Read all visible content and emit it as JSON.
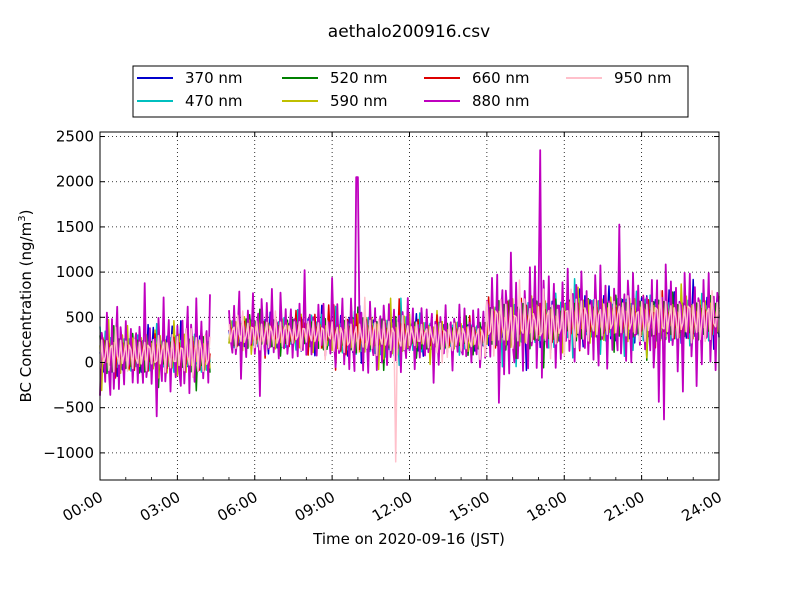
{
  "chart_data": {
    "type": "line",
    "title": "aethalo200916.csv",
    "xlabel": "Time on 2020-09-16 (JST)",
    "ylabel": "BC Concentration (ng/m³)",
    "ylabel_base": "BC Concentration (ng/m",
    "ylabel_sup": "3",
    "ylabel_end": ")",
    "x_unit": "hours since 00:00 JST",
    "xlim": [
      0,
      24
    ],
    "ylim": [
      -1300,
      2550
    ],
    "x_ticks": [
      0,
      3,
      6,
      9,
      12,
      15,
      18,
      21,
      24
    ],
    "x_tick_labels": [
      "00:00",
      "03:00",
      "06:00",
      "09:00",
      "12:00",
      "15:00",
      "18:00",
      "21:00",
      "24:00"
    ],
    "y_ticks": [
      -1000,
      -500,
      0,
      500,
      1000,
      1500,
      2000,
      2500
    ],
    "y_tick_labels": [
      "−1000",
      "−500",
      "0",
      "500",
      "1000",
      "1500",
      "2000",
      "2500"
    ],
    "grid": true,
    "legend_position": "top-center",
    "series": [
      {
        "name": "370 nm",
        "color": "#0000cc"
      },
      {
        "name": "470 nm",
        "color": "#00bfbf"
      },
      {
        "name": "520 nm",
        "color": "#008000"
      },
      {
        "name": "590 nm",
        "color": "#bfbf00"
      },
      {
        "name": "660 nm",
        "color": "#dd0000"
      },
      {
        "name": "880 nm",
        "color": "#bf00bf"
      },
      {
        "name": "950 nm",
        "color": "#ffc0cb"
      }
    ]
  }
}
